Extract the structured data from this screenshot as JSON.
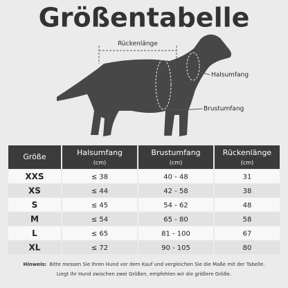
{
  "title": "Größentabelle",
  "labels": {
    "back": "Rückenlänge",
    "neck": "Halsumfang",
    "chest": "Brustumfang"
  },
  "table": {
    "header": [
      {
        "name": "Größe"
      },
      {
        "name": "Halsumfang",
        "unit": "(cm)"
      },
      {
        "name": "Brustumfang",
        "unit": "(cm)"
      },
      {
        "name": "Rückenlänge",
        "unit": "(cm)"
      }
    ],
    "rows": [
      [
        "XXS",
        "≤ 38",
        "40 - 48",
        "31"
      ],
      [
        "XS",
        "≤ 44",
        "42 - 58",
        "38"
      ],
      [
        "S",
        "≤ 45",
        "54 - 62",
        "48"
      ],
      [
        "M",
        "≤ 54",
        "65 - 80",
        "58"
      ],
      [
        "L",
        "≤ 65",
        "81 - 100",
        "67"
      ],
      [
        "XL",
        "≤ 72",
        "90 - 105",
        "80"
      ]
    ]
  },
  "note": {
    "label": "Hinweis:",
    "lines": [
      "Bitte messen Sie Ihren Hund vor dem Kauf und vergleichen Sie die Maße mit der Tabelle.",
      "Liegt Ihr Hund zwischen zwei Größen, empfehlen wir die größere Größe."
    ]
  }
}
